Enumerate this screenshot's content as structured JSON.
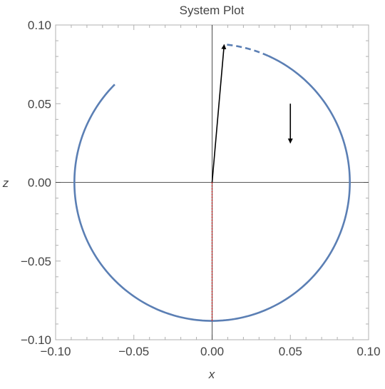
{
  "chart_data": {
    "type": "line",
    "title": "System Plot",
    "xlabel": "x",
    "ylabel": "z",
    "xlim": [
      -0.1,
      0.1
    ],
    "ylim": [
      -0.1,
      0.1
    ],
    "grid": false,
    "frame_ticks": true,
    "x_tick_labels": [
      "−0.10",
      "−0.05",
      "0.00",
      "0.05",
      "0.10"
    ],
    "y_tick_labels": [
      "0.10",
      "0.05",
      "0.00",
      "−0.05",
      "−0.10"
    ],
    "x_tick_values": [
      -0.1,
      -0.05,
      0.0,
      0.05,
      0.1
    ],
    "y_tick_values": [
      0.1,
      0.05,
      0.0,
      -0.05,
      -0.1
    ],
    "series": [
      {
        "style": "solid",
        "color": "#5b7fb4",
        "curve": "arc",
        "radius": 0.088,
        "angle_start_deg": 135,
        "angle_end_deg": 426
      },
      {
        "style": "dashed",
        "color": "#5b7fb4",
        "curve": "arc",
        "radius": 0.088,
        "angle_start_deg": 426,
        "angle_end_deg": 445
      },
      {
        "style": "dotted",
        "color": "#cc2222",
        "curve": "segment",
        "points": [
          [
            0.0,
            0.0
          ],
          [
            0.0,
            -0.088
          ]
        ]
      }
    ],
    "annotations": [
      {
        "type": "arrow",
        "color": "#000000",
        "from": [
          0.0,
          0.0
        ],
        "to": [
          0.0077,
          0.0875
        ]
      },
      {
        "type": "arrow",
        "color": "#000000",
        "from": [
          0.05,
          0.05
        ],
        "to": [
          0.05,
          0.025
        ]
      }
    ]
  }
}
